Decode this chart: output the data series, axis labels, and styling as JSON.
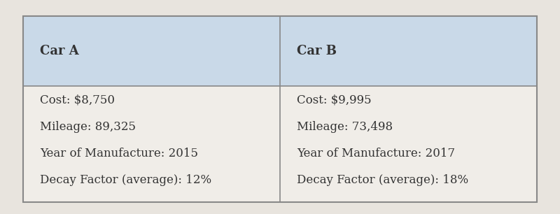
{
  "col_a_header": "Car A",
  "col_b_header": "Car B",
  "col_a_lines": [
    "Cost: $8,750",
    "Mileage: 89,325",
    "Year of Manufacture: 2015",
    "Decay Factor (average): 12%"
  ],
  "col_b_lines": [
    "Cost: $9,995",
    "Mileage: 73,498",
    "Year of Manufacture: 2017",
    "Decay Factor (average): 18%"
  ],
  "header_bg": "#c9d9e8",
  "body_bg": "#f0ede8",
  "outer_bg": "#e8e4de",
  "border_color": "#888888",
  "text_color": "#333333",
  "header_font_size": 13,
  "body_font_size": 12,
  "fig_width": 8.0,
  "fig_height": 3.06
}
